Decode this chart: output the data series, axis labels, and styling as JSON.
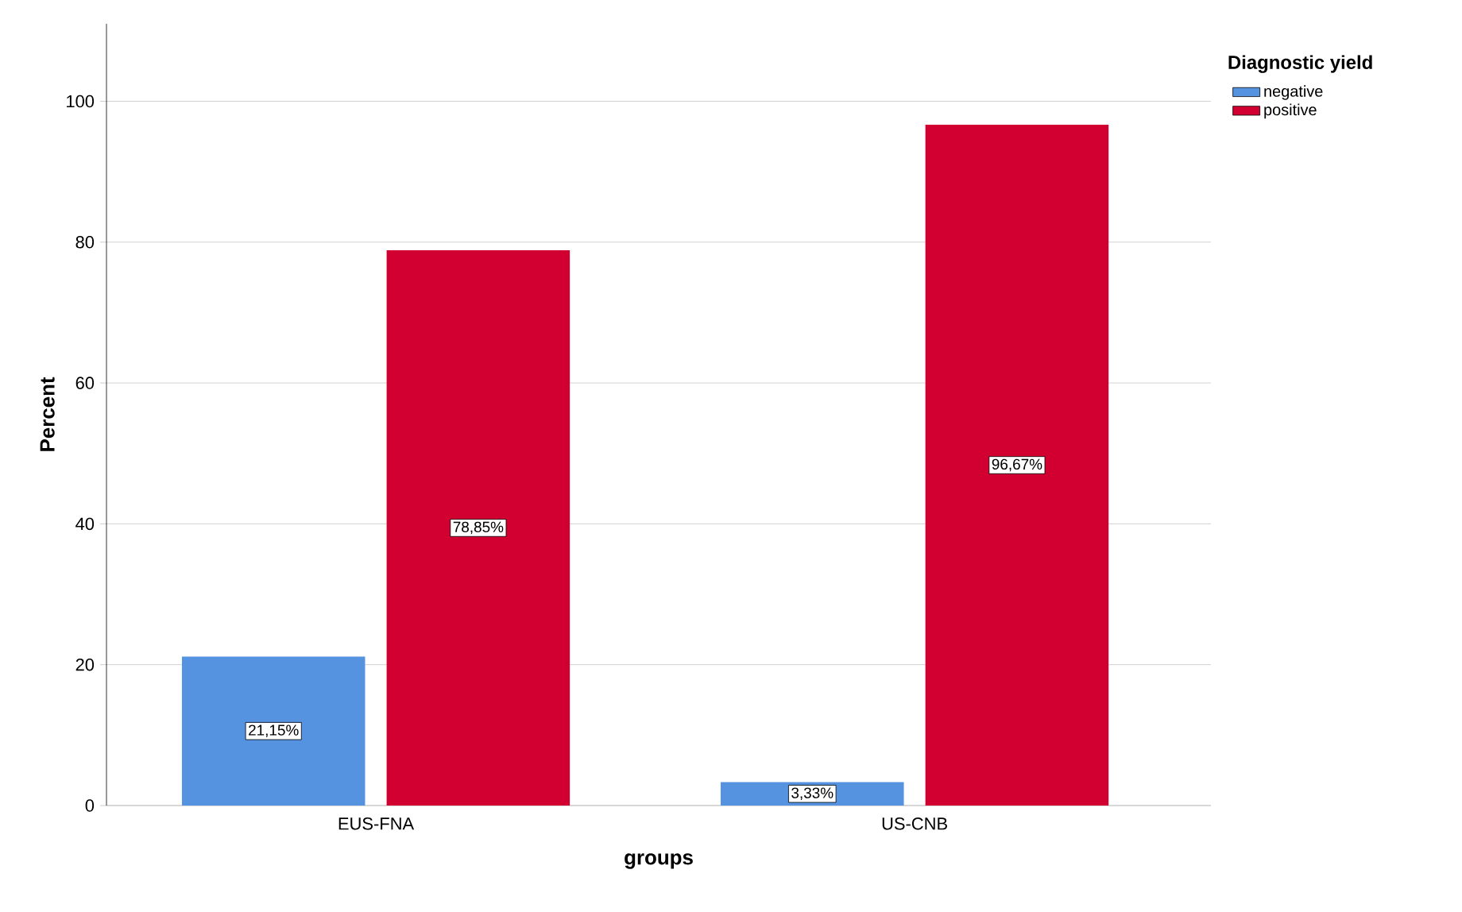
{
  "chart_data": {
    "type": "bar",
    "xlabel": "groups",
    "ylabel": "Percent",
    "legend_title": "Diagnostic yield",
    "categories": [
      "EUS-FNA",
      "US-CNB"
    ],
    "series": [
      {
        "name": "negative",
        "color": "#5592e0",
        "values": [
          21.15,
          3.33
        ],
        "value_labels": [
          "21,15%",
          "3,33%"
        ]
      },
      {
        "name": "positive",
        "color": "#d20030",
        "values": [
          78.85,
          96.67
        ],
        "value_labels": [
          "78,85%",
          "96,67%"
        ]
      }
    ],
    "ylim": [
      0,
      111
    ],
    "yticks": [
      0,
      20,
      40,
      60,
      80,
      100
    ],
    "grid": "y",
    "legend": "top right"
  }
}
